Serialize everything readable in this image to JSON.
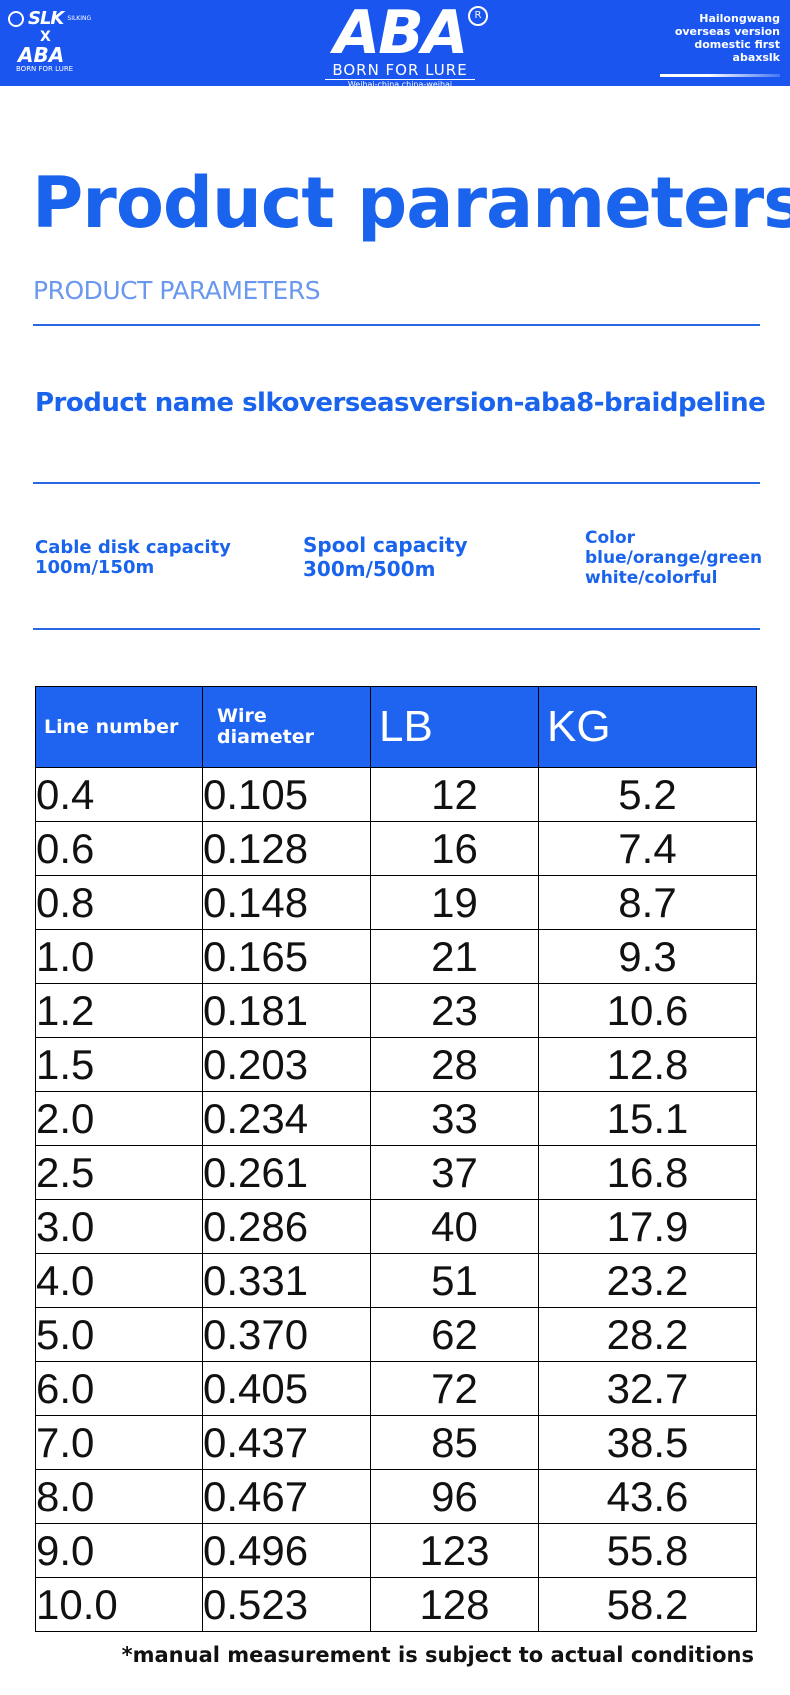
{
  "header": {
    "slk_text": "SLK",
    "slk_sub": "SILKING",
    "x_mark": "X",
    "aba_small": "ABA",
    "aba_small_sub": "BORN FOR LURE",
    "aba_big": "ABA",
    "registered": "R",
    "tagline": "BORN FOR LURE",
    "location": "Weihai-china china-weihai",
    "right_note": [
      "Hailongwang",
      "overseas version",
      "domestic first",
      "abaxslk"
    ],
    "brand_color": "#1a55f0"
  },
  "title": "Product parameters",
  "subtitle": "PRODUCT PARAMETERS",
  "product_name": "Product name slkoverseasversion-aba8-braidpeline",
  "specs": {
    "cable_label": "Cable disk capacity",
    "cable_value": "100m/150m",
    "spool_label": "Spool capacity",
    "spool_value": "300m/500m",
    "color_label": "Color",
    "color_value_1": "blue/orange/green",
    "color_value_2": "white/colorful"
  },
  "table": {
    "headers": [
      "Line number",
      "Wire diameter",
      "LB",
      "KG"
    ],
    "rows": [
      [
        "0.4",
        "0.105",
        "12",
        "5.2"
      ],
      [
        "0.6",
        "0.128",
        "16",
        "7.4"
      ],
      [
        "0.8",
        "0.148",
        "19",
        "8.7"
      ],
      [
        "1.0",
        "0.165",
        "21",
        "9.3"
      ],
      [
        "1.2",
        "0.181",
        "23",
        "10.6"
      ],
      [
        "1.5",
        "0.203",
        "28",
        "12.8"
      ],
      [
        "2.0",
        "0.234",
        "33",
        "15.1"
      ],
      [
        "2.5",
        "0.261",
        "37",
        "16.8"
      ],
      [
        "3.0",
        "0.286",
        "40",
        "17.9"
      ],
      [
        "4.0",
        "0.331",
        "51",
        "23.2"
      ],
      [
        "5.0",
        "0.370",
        "62",
        "28.2"
      ],
      [
        "6.0",
        "0.405",
        "72",
        "32.7"
      ],
      [
        "7.0",
        "0.437",
        "85",
        "38.5"
      ],
      [
        "8.0",
        "0.467",
        "96",
        "43.6"
      ],
      [
        "9.0",
        "0.496",
        "123",
        "55.8"
      ],
      [
        "10.0",
        "0.523",
        "128",
        "58.2"
      ]
    ]
  },
  "footnote": "*manual measurement is subject to actual conditions"
}
